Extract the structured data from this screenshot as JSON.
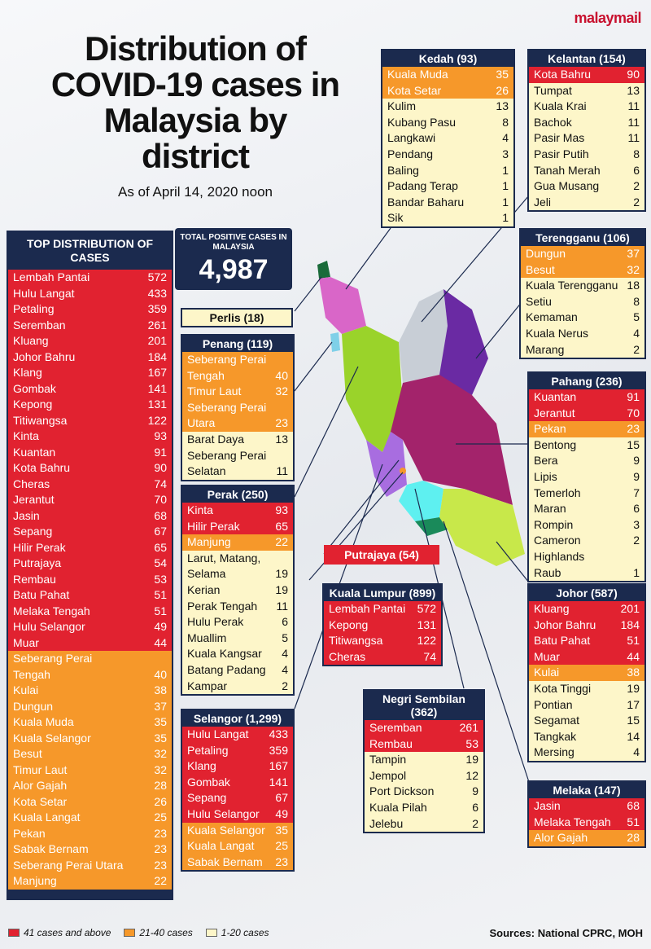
{
  "brand": "malaymail",
  "title": "Distribution of COVID-19 cases in Malaysia by district",
  "subtitle": "As of April 14, 2020 noon",
  "total": {
    "label": "TOTAL POSITIVE CASES IN MALAYSIA",
    "value": "4,987"
  },
  "top": {
    "header": "TOP DISTRIBUTION OF CASES",
    "rows": [
      {
        "name": "Lembah Pantai",
        "value": "572",
        "level": "r"
      },
      {
        "name": "Hulu Langat",
        "value": "433",
        "level": "r"
      },
      {
        "name": "Petaling",
        "value": "359",
        "level": "r"
      },
      {
        "name": "Seremban",
        "value": "261",
        "level": "r"
      },
      {
        "name": "Kluang",
        "value": "201",
        "level": "r"
      },
      {
        "name": "Johor Bahru",
        "value": "184",
        "level": "r"
      },
      {
        "name": "Klang",
        "value": "167",
        "level": "r"
      },
      {
        "name": "Gombak",
        "value": "141",
        "level": "r"
      },
      {
        "name": "Kepong",
        "value": "131",
        "level": "r"
      },
      {
        "name": "Titiwangsa",
        "value": "122",
        "level": "r"
      },
      {
        "name": "Kinta",
        "value": "93",
        "level": "r"
      },
      {
        "name": "Kuantan",
        "value": "91",
        "level": "r"
      },
      {
        "name": "Kota Bahru",
        "value": "90",
        "level": "r"
      },
      {
        "name": "Cheras",
        "value": "74",
        "level": "r"
      },
      {
        "name": "Jerantut",
        "value": "70",
        "level": "r"
      },
      {
        "name": "Jasin",
        "value": "68",
        "level": "r"
      },
      {
        "name": "Sepang",
        "value": "67",
        "level": "r"
      },
      {
        "name": "Hilir Perak",
        "value": "65",
        "level": "r"
      },
      {
        "name": "Putrajaya",
        "value": "54",
        "level": "r"
      },
      {
        "name": "Rembau",
        "value": "53",
        "level": "r"
      },
      {
        "name": "Batu Pahat",
        "value": "51",
        "level": "r"
      },
      {
        "name": "Melaka Tengah",
        "value": "51",
        "level": "r"
      },
      {
        "name": "Hulu Selangor",
        "value": "49",
        "level": "r"
      },
      {
        "name": "Muar",
        "value": "44",
        "level": "r"
      },
      {
        "name": "Seberang Perai",
        "value": "",
        "level": "o"
      },
      {
        "name": "Tengah",
        "value": "40",
        "level": "o"
      },
      {
        "name": "Kulai",
        "value": "38",
        "level": "o"
      },
      {
        "name": "Dungun",
        "value": "37",
        "level": "o"
      },
      {
        "name": "Kuala Muda",
        "value": "35",
        "level": "o"
      },
      {
        "name": "Kuala Selangor",
        "value": "35",
        "level": "o"
      },
      {
        "name": "Besut",
        "value": "32",
        "level": "o"
      },
      {
        "name": "Timur Laut",
        "value": "32",
        "level": "o"
      },
      {
        "name": "Alor Gajah",
        "value": "28",
        "level": "o"
      },
      {
        "name": "Kota Setar",
        "value": "26",
        "level": "o"
      },
      {
        "name": "Kuala Langat",
        "value": "25",
        "level": "o"
      },
      {
        "name": "Pekan",
        "value": "23",
        "level": "o"
      },
      {
        "name": "Sabak Bernam",
        "value": "23",
        "level": "o"
      },
      {
        "name": "Seberang Perai Utara",
        "value": "23",
        "level": "o"
      },
      {
        "name": "Manjung",
        "value": "22",
        "level": "o"
      }
    ]
  },
  "states": {
    "kedah": {
      "header": "Kedah (93)",
      "rows": [
        {
          "name": "Kuala Muda",
          "value": "35",
          "level": "o"
        },
        {
          "name": "Kota Setar",
          "value": "26",
          "level": "o"
        },
        {
          "name": "Kulim",
          "value": "13",
          "level": "y"
        },
        {
          "name": "Kubang Pasu",
          "value": "8",
          "level": "y"
        },
        {
          "name": "Langkawi",
          "value": "4",
          "level": "y"
        },
        {
          "name": "Pendang",
          "value": "3",
          "level": "y"
        },
        {
          "name": "Baling",
          "value": "1",
          "level": "y"
        },
        {
          "name": "Padang Terap",
          "value": "1",
          "level": "y"
        },
        {
          "name": "Bandar Baharu",
          "value": "1",
          "level": "y"
        },
        {
          "name": "Sik",
          "value": "1",
          "level": "y"
        }
      ]
    },
    "kelantan": {
      "header": "Kelantan (154)",
      "rows": [
        {
          "name": "Kota Bahru",
          "value": "90",
          "level": "r"
        },
        {
          "name": "Tumpat",
          "value": "13",
          "level": "y"
        },
        {
          "name": "Kuala Krai",
          "value": "11",
          "level": "y"
        },
        {
          "name": "Bachok",
          "value": "11",
          "level": "y"
        },
        {
          "name": "Pasir Mas",
          "value": "11",
          "level": "y"
        },
        {
          "name": "Pasir Putih",
          "value": "8",
          "level": "y"
        },
        {
          "name": "Tanah Merah",
          "value": "6",
          "level": "y"
        },
        {
          "name": "Gua Musang",
          "value": "2",
          "level": "y"
        },
        {
          "name": "Jeli",
          "value": "2",
          "level": "y"
        }
      ]
    },
    "terengganu": {
      "header": "Terengganu (106)",
      "rows": [
        {
          "name": "Dungun",
          "value": "37",
          "level": "o"
        },
        {
          "name": "Besut",
          "value": "32",
          "level": "o"
        },
        {
          "name": "Kuala Terengganu",
          "value": "18",
          "level": "y"
        },
        {
          "name": "Setiu",
          "value": "8",
          "level": "y"
        },
        {
          "name": "Kemaman",
          "value": "5",
          "level": "y"
        },
        {
          "name": "Kuala Nerus",
          "value": "4",
          "level": "y"
        },
        {
          "name": "Marang",
          "value": "2",
          "level": "y"
        }
      ]
    },
    "pahang": {
      "header": "Pahang (236)",
      "rows": [
        {
          "name": "Kuantan",
          "value": "91",
          "level": "r"
        },
        {
          "name": "Jerantut",
          "value": "70",
          "level": "r"
        },
        {
          "name": "Pekan",
          "value": "23",
          "level": "o"
        },
        {
          "name": "Bentong",
          "value": "15",
          "level": "y"
        },
        {
          "name": "Bera",
          "value": "9",
          "level": "y"
        },
        {
          "name": "Lipis",
          "value": "9",
          "level": "y"
        },
        {
          "name": "Temerloh",
          "value": "7",
          "level": "y"
        },
        {
          "name": "Maran",
          "value": "6",
          "level": "y"
        },
        {
          "name": "Rompin",
          "value": "3",
          "level": "y"
        },
        {
          "name": "Cameron Highlands",
          "value": "2",
          "level": "y"
        },
        {
          "name": "Raub",
          "value": "1",
          "level": "y"
        }
      ]
    },
    "perlis": {
      "header": "Perlis (18)"
    },
    "penang": {
      "header": "Penang (119)",
      "rows": [
        {
          "name": "Seberang Perai",
          "value": "",
          "level": "o"
        },
        {
          "name": "Tengah",
          "value": "40",
          "level": "o"
        },
        {
          "name": "Timur Laut",
          "value": "32",
          "level": "o"
        },
        {
          "name": "Seberang Perai",
          "value": "",
          "level": "o"
        },
        {
          "name": "Utara",
          "value": "23",
          "level": "o"
        },
        {
          "name": "Barat Daya",
          "value": "13",
          "level": "y"
        },
        {
          "name": "Seberang Perai",
          "value": "",
          "level": "y"
        },
        {
          "name": "Selatan",
          "value": "11",
          "level": "y"
        }
      ]
    },
    "perak": {
      "header": "Perak (250)",
      "rows": [
        {
          "name": "Kinta",
          "value": "93",
          "level": "r"
        },
        {
          "name": "Hilir Perak",
          "value": "65",
          "level": "r"
        },
        {
          "name": "Manjung",
          "value": "22",
          "level": "o"
        },
        {
          "name": "Larut, Matang,",
          "value": "",
          "level": "y"
        },
        {
          "name": "Selama",
          "value": "19",
          "level": "y"
        },
        {
          "name": "Kerian",
          "value": "19",
          "level": "y"
        },
        {
          "name": "Perak Tengah",
          "value": "11",
          "level": "y"
        },
        {
          "name": "Hulu Perak",
          "value": "6",
          "level": "y"
        },
        {
          "name": "Muallim",
          "value": "5",
          "level": "y"
        },
        {
          "name": "Kuala Kangsar",
          "value": "4",
          "level": "y"
        },
        {
          "name": "Batang Padang",
          "value": "4",
          "level": "y"
        },
        {
          "name": "Kampar",
          "value": "2",
          "level": "y"
        }
      ]
    },
    "putrajaya": {
      "header": "Putrajaya (54)"
    },
    "kl": {
      "header": "Kuala Lumpur (899)",
      "rows": [
        {
          "name": "Lembah Pantai",
          "value": "572",
          "level": "r"
        },
        {
          "name": "Kepong",
          "value": "131",
          "level": "r"
        },
        {
          "name": "Titiwangsa",
          "value": "122",
          "level": "r"
        },
        {
          "name": "Cheras",
          "value": "74",
          "level": "r"
        }
      ]
    },
    "johor": {
      "header": "Johor (587)",
      "rows": [
        {
          "name": "Kluang",
          "value": "201",
          "level": "r"
        },
        {
          "name": "Johor Bahru",
          "value": "184",
          "level": "r"
        },
        {
          "name": "Batu Pahat",
          "value": "51",
          "level": "r"
        },
        {
          "name": "Muar",
          "value": "44",
          "level": "r"
        },
        {
          "name": "Kulai",
          "value": "38",
          "level": "o"
        },
        {
          "name": "Kota Tinggi",
          "value": "19",
          "level": "y"
        },
        {
          "name": "Pontian",
          "value": "17",
          "level": "y"
        },
        {
          "name": "Segamat",
          "value": "15",
          "level": "y"
        },
        {
          "name": "Tangkak",
          "value": "14",
          "level": "y"
        },
        {
          "name": "Mersing",
          "value": "4",
          "level": "y"
        }
      ]
    },
    "ns": {
      "header": "Negri Sembilan (362)",
      "rows": [
        {
          "name": "Seremban",
          "value": "261",
          "level": "r"
        },
        {
          "name": "Rembau",
          "value": "53",
          "level": "r"
        },
        {
          "name": "Tampin",
          "value": "19",
          "level": "y"
        },
        {
          "name": "Jempol",
          "value": "12",
          "level": "y"
        },
        {
          "name": "Port Dickson",
          "value": "9",
          "level": "y"
        },
        {
          "name": "Kuala Pilah",
          "value": "6",
          "level": "y"
        },
        {
          "name": "Jelebu",
          "value": "2",
          "level": "y"
        }
      ]
    },
    "selangor": {
      "header": "Selangor (1,299)",
      "rows": [
        {
          "name": "Hulu Langat",
          "value": "433",
          "level": "r"
        },
        {
          "name": "Petaling",
          "value": "359",
          "level": "r"
        },
        {
          "name": "Klang",
          "value": "167",
          "level": "r"
        },
        {
          "name": "Gombak",
          "value": "141",
          "level": "r"
        },
        {
          "name": "Sepang",
          "value": "67",
          "level": "r"
        },
        {
          "name": "Hulu Selangor",
          "value": "49",
          "level": "r"
        },
        {
          "name": "Kuala Selangor",
          "value": "35",
          "level": "o"
        },
        {
          "name": "Kuala Langat",
          "value": "25",
          "level": "o"
        },
        {
          "name": "Sabak Bernam",
          "value": "23",
          "level": "o"
        }
      ]
    },
    "melaka": {
      "header": "Melaka (147)",
      "rows": [
        {
          "name": "Jasin",
          "value": "68",
          "level": "r"
        },
        {
          "name": "Melaka Tengah",
          "value": "51",
          "level": "r"
        },
        {
          "name": "Alor Gajah",
          "value": "28",
          "level": "o"
        }
      ]
    }
  },
  "legend": [
    {
      "label": "41 cases and above",
      "color": "#e12230"
    },
    {
      "label": "21-40 cases",
      "color": "#f6982a"
    },
    {
      "label": "1-20 cases",
      "color": "#fdf6c9"
    }
  ],
  "source": "Sources: National CPRC, MOH"
}
